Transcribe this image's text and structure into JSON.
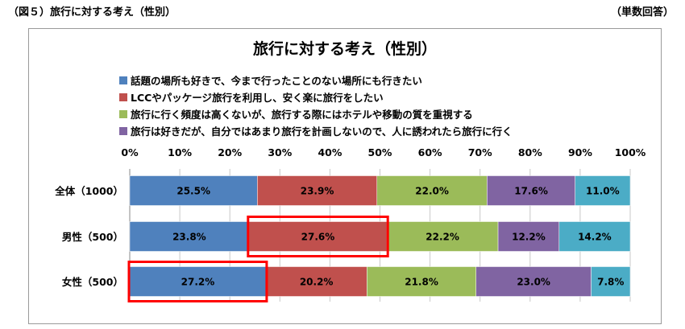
{
  "header": {
    "figure_label": "（図５）旅行に対する考え（性別）",
    "unit_note": "（単数回答）"
  },
  "chart_data": {
    "type": "bar",
    "orientation": "horizontal",
    "stacked": true,
    "title": "旅行に対する考え（性別）",
    "xlim": [
      0,
      100
    ],
    "x_ticks": [
      "0%",
      "10%",
      "20%",
      "30%",
      "40%",
      "50%",
      "60%",
      "70%",
      "80%",
      "90%",
      "100%"
    ],
    "categories": [
      "全体（1000）",
      "男性（500）",
      "女性（500）"
    ],
    "series": [
      {
        "name": "話題の場所も好きで、今まで行ったことのない場所にも行きたい",
        "values": [
          25.5,
          23.8,
          27.2
        ],
        "color": "#4f81bd"
      },
      {
        "name": "LCCやパッケージ旅行を利用し、安く楽に旅行をしたい",
        "values": [
          23.9,
          27.6,
          20.2
        ],
        "color": "#c0504d"
      },
      {
        "name": "旅行に行く頻度は高くないが、旅行する際にはホテルや移動の質を重視する",
        "values": [
          22.0,
          22.2,
          21.8
        ],
        "color": "#9bbb59"
      },
      {
        "name": "旅行は好きだが、自分ではあまり旅行を計画しないので、人に誘われたら旅行に行く",
        "values": [
          17.6,
          12.2,
          23.0
        ],
        "color": "#8064a2"
      },
      {
        "name": "",
        "values": [
          11.0,
          14.2,
          7.8
        ],
        "color": "#4bacc6"
      }
    ],
    "value_labels": [
      [
        "25.5%",
        "23.9%",
        "22.0%",
        "17.6%",
        "11.0%"
      ],
      [
        "23.8%",
        "27.6%",
        "22.2%",
        "12.2%",
        "14.2%"
      ],
      [
        "27.2%",
        "20.2%",
        "21.8%",
        "23.0%",
        "7.8%"
      ]
    ],
    "highlights": [
      {
        "category_index": 1,
        "series_index": 1,
        "color": "#ff0000"
      },
      {
        "category_index": 2,
        "series_index": 0,
        "color": "#ff0000"
      }
    ],
    "legend_position": "top",
    "grid": true
  }
}
